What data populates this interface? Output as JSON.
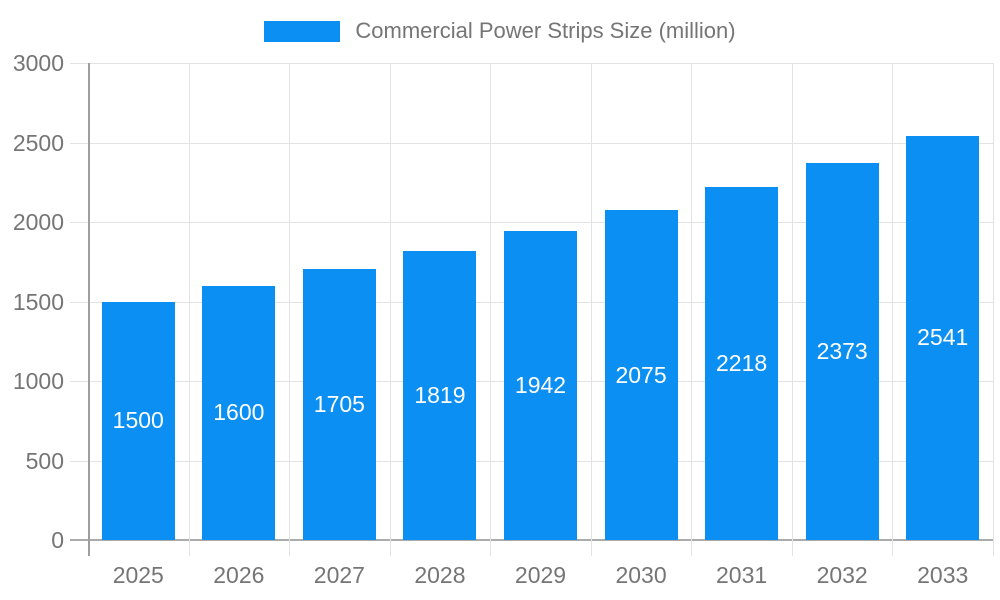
{
  "chart_data": {
    "type": "bar",
    "title": "Commercial Power Strips Size (million)",
    "categories": [
      "2025",
      "2026",
      "2027",
      "2028",
      "2029",
      "2030",
      "2031",
      "2032",
      "2033"
    ],
    "values": [
      1500,
      1600,
      1705,
      1819,
      1942,
      2075,
      2218,
      2373,
      2541
    ],
    "series": [
      {
        "name": "Commercial Power Strips Size (million)",
        "values": [
          1500,
          1600,
          1705,
          1819,
          1942,
          2075,
          2218,
          2373,
          2541
        ]
      }
    ],
    "xlabel": "",
    "ylabel": "",
    "ylim": [
      0,
      3000
    ],
    "yticks": [
      0,
      500,
      1000,
      1500,
      2000,
      2500,
      3000
    ],
    "grid": true,
    "legend_position": "top",
    "value_labels": "inside-center"
  },
  "legend": {
    "label": "Commercial Power Strips Size (million)"
  },
  "colors": {
    "bar": "#0c8ff2",
    "axis_text": "#757575",
    "legend_text": "#757575",
    "grid_line": "#e3e3e3",
    "axis_line": "#9e9e9e",
    "baseline": "#ababab",
    "value_label": "#ffffff",
    "background": "#ffffff"
  }
}
